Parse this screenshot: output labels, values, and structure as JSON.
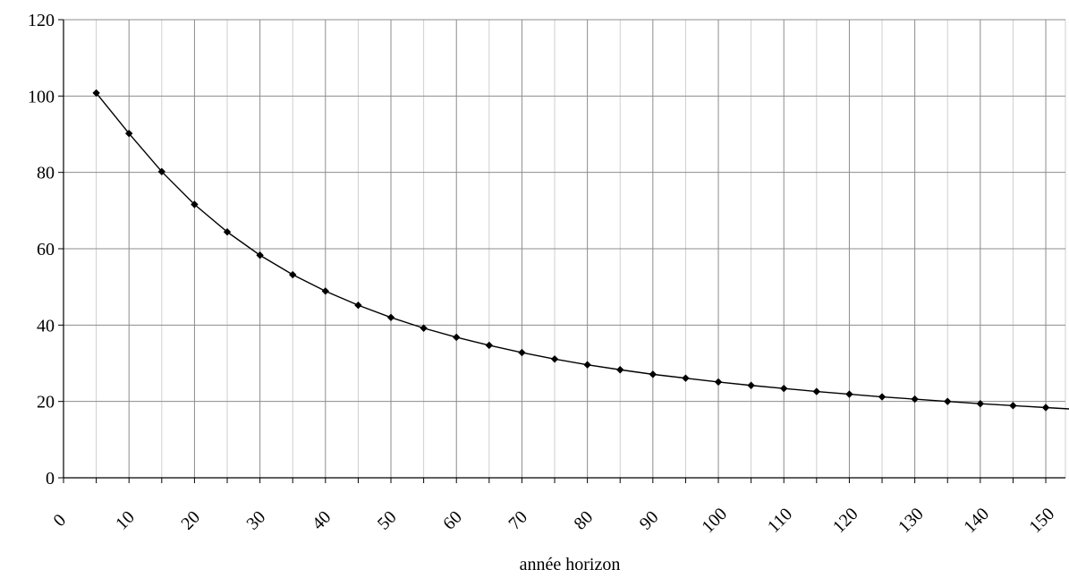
{
  "chart_data": {
    "type": "line",
    "title": "",
    "xlabel": "année horizon",
    "ylabel": "",
    "xlim": [
      0,
      152
    ],
    "ylim": [
      0,
      120
    ],
    "xticks": [
      0,
      10,
      20,
      30,
      40,
      50,
      60,
      70,
      80,
      90,
      100,
      110,
      120,
      130,
      140,
      150
    ],
    "yticks": [
      0,
      20,
      40,
      60,
      80,
      100,
      120
    ],
    "grid": true,
    "marker": "diamond",
    "line_color": "#000000",
    "series": [
      {
        "x": [
          5,
          10,
          15,
          20,
          25,
          30,
          35,
          40,
          45,
          50,
          55,
          60,
          65,
          70,
          75,
          80,
          85,
          90,
          95,
          100,
          105,
          110,
          115,
          120,
          125,
          130,
          135,
          140,
          145,
          150,
          155
        ],
        "values": [
          100.8,
          90.2,
          80.2,
          71.6,
          64.4,
          58.3,
          53.2,
          48.9,
          45.2,
          42.0,
          39.2,
          36.8,
          34.7,
          32.8,
          31.1,
          29.6,
          28.3,
          27.1,
          26.1,
          25.1,
          24.2,
          23.4,
          22.6,
          21.9,
          21.2,
          20.6,
          20.0,
          19.4,
          18.9,
          18.4,
          17.9
        ]
      }
    ]
  }
}
